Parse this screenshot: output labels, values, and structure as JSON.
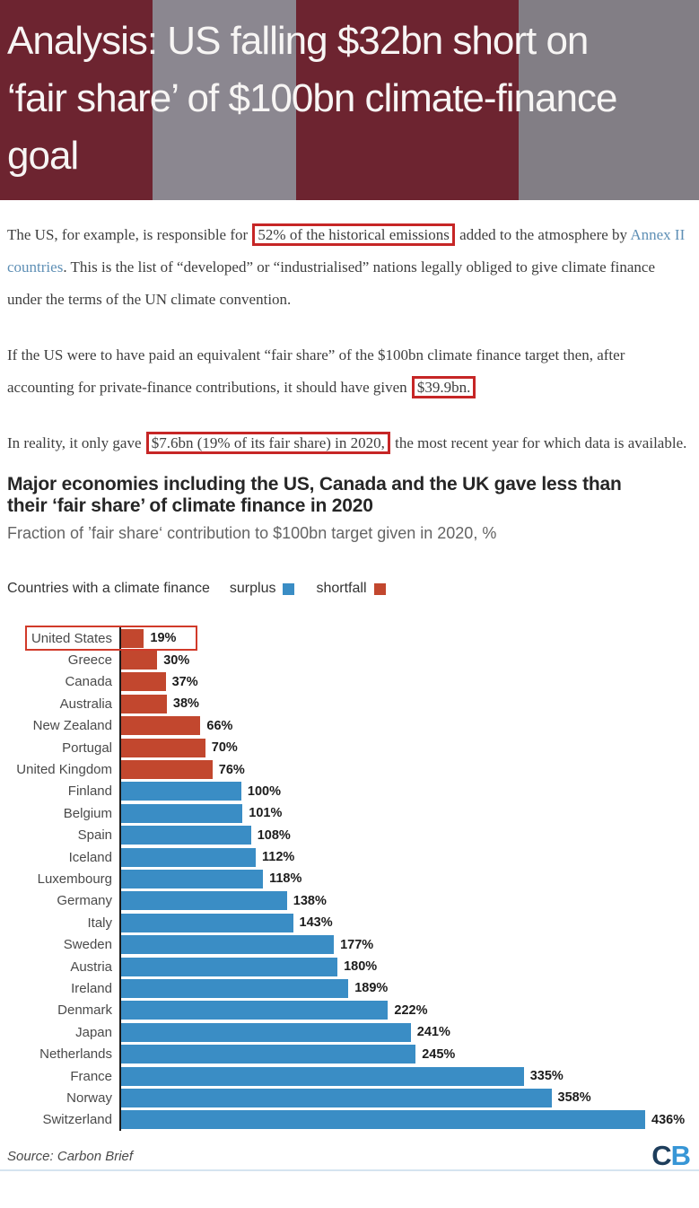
{
  "header": {
    "title_lines": [
      "Analysis: US falling $32bn short on",
      "‘fair share’ of $100bn climate-finance",
      "goal"
    ],
    "colors": {
      "stripe_dark": "#6d2430",
      "stripe_gray": "#8b8790",
      "title_text": "#f7f5f4"
    }
  },
  "article": {
    "p1": {
      "before": "The US, for example, is responsible for ",
      "boxed": "52% of the historical emissions",
      "mid": " added to the atmosphere by ",
      "link": "Annex II countries",
      "after": ". This is the list of “developed” or “industrialised” nations legally obliged to give climate finance under the terms of the UN climate convention."
    },
    "p2": {
      "before": "If the US were to have paid an equivalent “fair share” of the $100bn climate finance target then, after accounting for private-finance contributions, it should have given ",
      "boxed": "$39.9bn."
    },
    "p3": {
      "before": "In reality, it only gave ",
      "boxed": "$7.6bn (19% of its fair share) in 2020,",
      "after": " the most recent year for which data is available."
    }
  },
  "chart_data": {
    "type": "bar",
    "orientation": "horizontal",
    "title_lines": [
      "Major economies including the US, Canada and the UK gave less than",
      "their ‘fair share’ of climate finance in 2020"
    ],
    "title": "Major economies including the US, Canada and the UK gave less than their ‘fair share’ of climate finance in 2020",
    "subtitle": "Fraction of ’fair share‘ contribution to $100bn target given in 2020, %",
    "legend": {
      "prefix": "Countries with a climate finance",
      "surplus_label": "surplus",
      "shortfall_label": "shortfall"
    },
    "unit": "%",
    "xlim": [
      0,
      436
    ],
    "grid": false,
    "rows": [
      {
        "country": "United States",
        "value": 19,
        "status": "shortfall",
        "highlighted": true
      },
      {
        "country": "Greece",
        "value": 30,
        "status": "shortfall"
      },
      {
        "country": "Canada",
        "value": 37,
        "status": "shortfall"
      },
      {
        "country": "Australia",
        "value": 38,
        "status": "shortfall"
      },
      {
        "country": "New Zealand",
        "value": 66,
        "status": "shortfall"
      },
      {
        "country": "Portugal",
        "value": 70,
        "status": "shortfall"
      },
      {
        "country": "United Kingdom",
        "value": 76,
        "status": "shortfall"
      },
      {
        "country": "Finland",
        "value": 100,
        "status": "surplus"
      },
      {
        "country": "Belgium",
        "value": 101,
        "status": "surplus"
      },
      {
        "country": "Spain",
        "value": 108,
        "status": "surplus"
      },
      {
        "country": "Iceland",
        "value": 112,
        "status": "surplus"
      },
      {
        "country": "Luxembourg",
        "value": 118,
        "status": "surplus"
      },
      {
        "country": "Germany",
        "value": 138,
        "status": "surplus"
      },
      {
        "country": "Italy",
        "value": 143,
        "status": "surplus"
      },
      {
        "country": "Sweden",
        "value": 177,
        "status": "surplus"
      },
      {
        "country": "Austria",
        "value": 180,
        "status": "surplus"
      },
      {
        "country": "Ireland",
        "value": 189,
        "status": "surplus"
      },
      {
        "country": "Denmark",
        "value": 222,
        "status": "surplus"
      },
      {
        "country": "Japan",
        "value": 241,
        "status": "surplus"
      },
      {
        "country": "Netherlands",
        "value": 245,
        "status": "surplus"
      },
      {
        "country": "France",
        "value": 335,
        "status": "surplus"
      },
      {
        "country": "Norway",
        "value": 358,
        "status": "surplus"
      },
      {
        "country": "Switzerland",
        "value": 436,
        "status": "surplus"
      }
    ],
    "colors": {
      "surplus": "#3a8dc5",
      "shortfall": "#c2472e",
      "annotation": "#d13a2a"
    },
    "source": "Source: Carbon Brief",
    "logo": {
      "c": "C",
      "b": "B"
    }
  }
}
